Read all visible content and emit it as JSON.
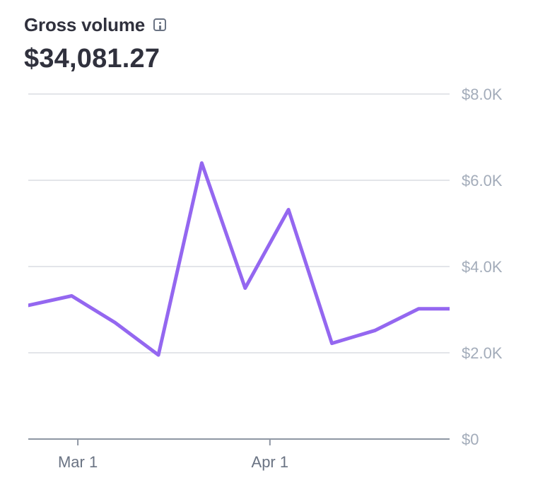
{
  "header": {
    "title": "Gross volume",
    "amount": "$34,081.27"
  },
  "colors": {
    "series": "#9467f0"
  },
  "chart_data": {
    "type": "line",
    "title": "Gross volume",
    "ylim": [
      0,
      8000
    ],
    "y_ticks": [
      {
        "value": 8000,
        "label": "$8.0K"
      },
      {
        "value": 6000,
        "label": "$6.0K"
      },
      {
        "value": 4000,
        "label": "$4.0K"
      },
      {
        "value": 2000,
        "label": "$2.0K"
      },
      {
        "value": 0,
        "label": "$0"
      }
    ],
    "x_range": [
      "2024-02-22",
      "2024-04-30"
    ],
    "x_ticks": [
      {
        "value": "2024-03-01",
        "label": "Mar 1"
      },
      {
        "value": "2024-04-01",
        "label": "Apr 1"
      }
    ],
    "grid": true,
    "series": [
      {
        "x": [
          "2024-02-22",
          "2024-02-29",
          "2024-03-07",
          "2024-03-14",
          "2024-03-21",
          "2024-03-28",
          "2024-04-04",
          "2024-04-11",
          "2024-04-18",
          "2024-04-25",
          "2024-05-02"
        ],
        "values": [
          3100,
          3320,
          2700,
          1950,
          6400,
          3500,
          5320,
          2220,
          2520,
          3020,
          3020
        ]
      }
    ]
  }
}
